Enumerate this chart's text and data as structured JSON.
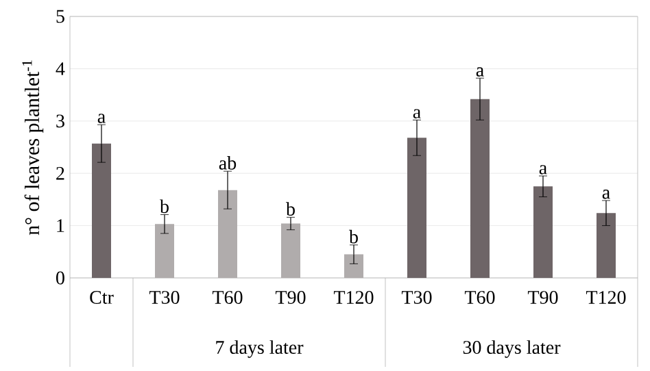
{
  "chart_data": {
    "type": "bar",
    "ylabel": "n° of leaves plantlet$^{-1}$",
    "categories": [
      "Ctr",
      "T30",
      "T60",
      "T90",
      "T120",
      "T30",
      "T60",
      "T90",
      "T120"
    ],
    "values": [
      2.57,
      1.03,
      1.68,
      1.04,
      0.45,
      2.68,
      3.42,
      1.75,
      1.24
    ],
    "errors": [
      0.36,
      0.18,
      0.36,
      0.12,
      0.18,
      0.34,
      0.4,
      0.2,
      0.24
    ],
    "colors": [
      "#6e6567",
      "#b0acac",
      "#b0acac",
      "#b0acac",
      "#b0acac",
      "#6e6567",
      "#6e6567",
      "#6e6567",
      "#6e6567"
    ],
    "annotations": [
      "a",
      "b",
      "ab",
      "b",
      "b",
      "a",
      "a",
      "a",
      "a",
      "7 days later",
      "30 days later"
    ],
    "ylim": [
      0,
      5
    ],
    "yticks": [
      0,
      1,
      2,
      3,
      4,
      5
    ],
    "grid": "y"
  }
}
